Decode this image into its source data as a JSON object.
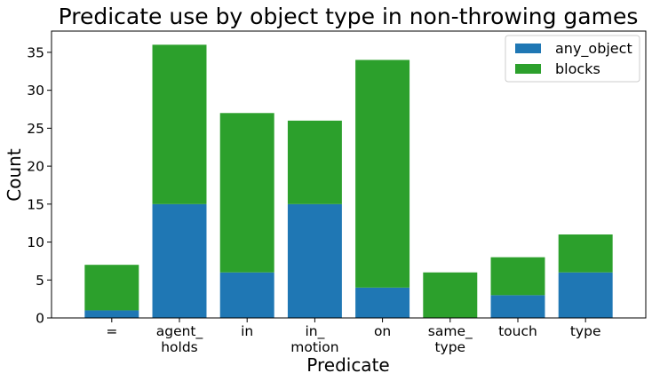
{
  "chart_data": {
    "type": "bar",
    "stacked": true,
    "title": "Predicate use by object type in non-throwing games",
    "xlabel": "Predicate",
    "ylabel": "Count",
    "categories": [
      "=",
      "agent_\nholds",
      "in",
      "in_\nmotion",
      "on",
      "same_\ntype",
      "touch",
      "type"
    ],
    "series": [
      {
        "name": "any_object",
        "color": "#1f77b4",
        "values": [
          1,
          15,
          6,
          15,
          4,
          0,
          3,
          6
        ]
      },
      {
        "name": "blocks",
        "color": "#2ca02c",
        "values": [
          6,
          21,
          21,
          11,
          30,
          6,
          5,
          5
        ]
      }
    ],
    "ylim": [
      0,
      37.8
    ],
    "yticks": [
      0,
      5,
      10,
      15,
      20,
      25,
      30,
      35
    ],
    "grid": false,
    "legend_position": "top-right"
  }
}
